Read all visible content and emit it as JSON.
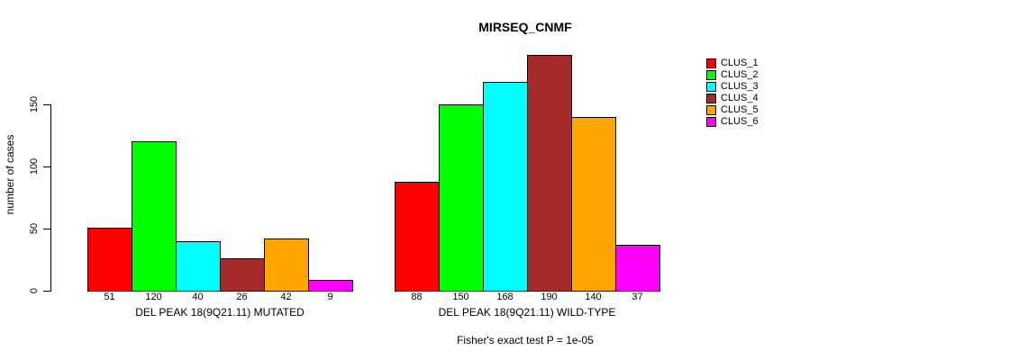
{
  "chart_data": {
    "type": "bar",
    "title": "MIRSEQ_CNMF",
    "subtitle": "Fisher's exact test P = 1e-05",
    "ylabel": "number of cases",
    "xlabel": "",
    "categories": [
      "DEL PEAK 18(9Q21.11) MUTATED",
      "DEL PEAK 18(9Q21.11) WILD-TYPE"
    ],
    "series": [
      {
        "name": "CLUS_1",
        "color": "#FF0000",
        "values": [
          51,
          88
        ]
      },
      {
        "name": "CLUS_2",
        "color": "#00FF00",
        "values": [
          120,
          150
        ]
      },
      {
        "name": "CLUS_3",
        "color": "#00FFFF",
        "values": [
          40,
          168
        ]
      },
      {
        "name": "CLUS_4",
        "color": "#A52A2A",
        "values": [
          26,
          190
        ]
      },
      {
        "name": "CLUS_5",
        "color": "#FFA500",
        "values": [
          42,
          140
        ]
      },
      {
        "name": "CLUS_6",
        "color": "#FF00FF",
        "values": [
          9,
          37
        ]
      }
    ],
    "yticks": [
      0,
      50,
      100,
      150
    ],
    "ylim": [
      0,
      190
    ],
    "bar_value_labels": true,
    "grid": false,
    "legend_position": "right",
    "bar_border_color": "#000000",
    "text_color": "#000000",
    "background_color": "#FFFFFF"
  }
}
